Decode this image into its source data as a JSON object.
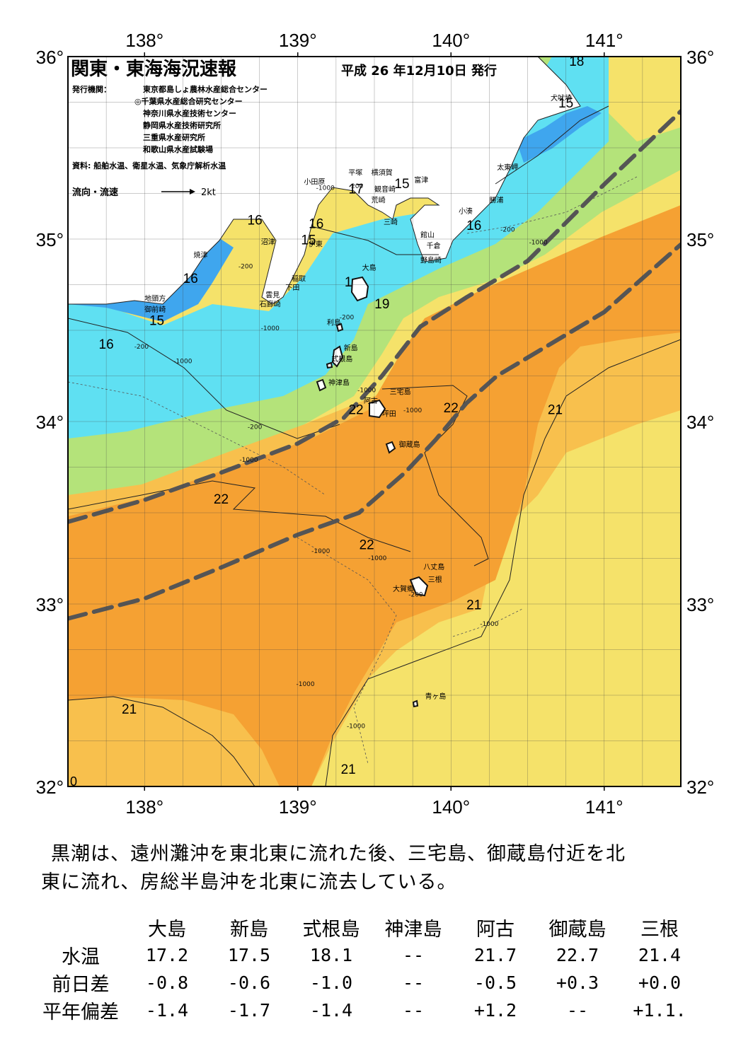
{
  "header": {
    "title": "関東・東海海況速報",
    "issue_date": "平成 26 年12月10日 発行",
    "publisher_label": "発行機関：",
    "publishers": [
      "東京都島しょ農林水産総合センター",
      "◎千葉県水産総合研究センター",
      "神奈川県水産技術センター",
      "静岡県水産技術研究所",
      "三重県水産研究所",
      "和歌山県水産試験場"
    ],
    "source": "資料: 船舶水温、衛星水温、気象庁解析水温",
    "legend_label": "流向・流速",
    "legend_scale": "2kt"
  },
  "map": {
    "lon_ticks": [
      "138°",
      "139°",
      "140°",
      "141°"
    ],
    "lat_ticks": [
      "36°",
      "35°",
      "34°",
      "33°",
      "32°"
    ],
    "corner_zero": "0",
    "colors": {
      "ocean_warm": "#f5a133",
      "ocean_mid": "#f8c04d",
      "ocean_yellow": "#f5e26a",
      "ocean_cold_green": "#b4e37a",
      "ocean_cyan": "#5fe0f2",
      "ocean_blue": "#3fa6ee",
      "land": "#ffffff",
      "kuroshio_axis": "#555555"
    },
    "temp_labels": [
      {
        "text": "18",
        "lon": 140.82,
        "lat": 35.95
      },
      {
        "text": "15",
        "lon": 140.75,
        "lat": 35.72
      },
      {
        "text": "16",
        "lon": 140.15,
        "lat": 35.05
      },
      {
        "text": "17",
        "lon": 139.38,
        "lat": 35.25
      },
      {
        "text": "15",
        "lon": 139.68,
        "lat": 35.28
      },
      {
        "text": "16",
        "lon": 138.72,
        "lat": 35.08
      },
      {
        "text": "16",
        "lon": 139.12,
        "lat": 35.06
      },
      {
        "text": "15",
        "lon": 139.07,
        "lat": 34.97
      },
      {
        "text": "16",
        "lon": 138.3,
        "lat": 34.76
      },
      {
        "text": "15",
        "lon": 138.08,
        "lat": 34.53
      },
      {
        "text": "16",
        "lon": 137.75,
        "lat": 34.4
      },
      {
        "text": "1",
        "lon": 139.33,
        "lat": 34.74
      },
      {
        "text": "19",
        "lon": 139.55,
        "lat": 34.62
      },
      {
        "text": "22",
        "lon": 139.38,
        "lat": 34.04
      },
      {
        "text": "22",
        "lon": 140.0,
        "lat": 34.05
      },
      {
        "text": "21",
        "lon": 140.68,
        "lat": 34.04
      },
      {
        "text": "22",
        "lon": 138.5,
        "lat": 33.55
      },
      {
        "text": "22",
        "lon": 139.45,
        "lat": 33.3
      },
      {
        "text": "21",
        "lon": 140.15,
        "lat": 32.97
      },
      {
        "text": "21",
        "lon": 137.9,
        "lat": 32.4
      },
      {
        "text": "21",
        "lon": 139.33,
        "lat": 32.07
      }
    ],
    "place_names": [
      {
        "text": "犬吠埼",
        "lon": 140.65,
        "lat": 35.76
      },
      {
        "text": "太東岬",
        "lon": 140.3,
        "lat": 35.38
      },
      {
        "text": "勝浦",
        "lon": 140.25,
        "lat": 35.2
      },
      {
        "text": "小湊",
        "lon": 140.05,
        "lat": 35.14
      },
      {
        "text": "富津",
        "lon": 139.76,
        "lat": 35.31
      },
      {
        "text": "横須賀",
        "lon": 139.48,
        "lat": 35.35
      },
      {
        "text": "観音崎",
        "lon": 139.5,
        "lat": 35.26
      },
      {
        "text": "荒崎",
        "lon": 139.48,
        "lat": 35.2
      },
      {
        "text": "三崎",
        "lon": 139.56,
        "lat": 35.08
      },
      {
        "text": "館山",
        "lon": 139.8,
        "lat": 35.01
      },
      {
        "text": "千倉",
        "lon": 139.84,
        "lat": 34.95
      },
      {
        "text": "野島崎",
        "lon": 139.8,
        "lat": 34.87
      },
      {
        "text": "平塚",
        "lon": 139.33,
        "lat": 35.35
      },
      {
        "text": "小田原",
        "lon": 139.04,
        "lat": 35.3
      },
      {
        "text": "沼津",
        "lon": 138.76,
        "lat": 34.97
      },
      {
        "text": "伊東",
        "lon": 139.07,
        "lat": 34.96
      },
      {
        "text": "稲取",
        "lon": 138.96,
        "lat": 34.77
      },
      {
        "text": "下田",
        "lon": 138.92,
        "lat": 34.72
      },
      {
        "text": "雲見",
        "lon": 138.79,
        "lat": 34.68
      },
      {
        "text": "石廊崎",
        "lon": 138.75,
        "lat": 34.63
      },
      {
        "text": "焼津",
        "lon": 138.32,
        "lat": 34.9
      },
      {
        "text": "地頭方",
        "lon": 138.0,
        "lat": 34.66
      },
      {
        "text": "御前崎",
        "lon": 138.0,
        "lat": 34.6
      },
      {
        "text": "大島",
        "lon": 139.42,
        "lat": 34.83
      },
      {
        "text": "利島",
        "lon": 139.19,
        "lat": 34.53
      },
      {
        "text": "新島",
        "lon": 139.3,
        "lat": 34.39
      },
      {
        "text": "式根島",
        "lon": 139.22,
        "lat": 34.33
      },
      {
        "text": "神津島",
        "lon": 139.2,
        "lat": 34.2
      },
      {
        "text": "三宅島",
        "lon": 139.6,
        "lat": 34.15
      },
      {
        "text": "阿古",
        "lon": 139.43,
        "lat": 34.1
      },
      {
        "text": "坪田",
        "lon": 139.55,
        "lat": 34.03
      },
      {
        "text": "御蔵島",
        "lon": 139.66,
        "lat": 33.86
      },
      {
        "text": "八丈島",
        "lon": 139.82,
        "lat": 33.19
      },
      {
        "text": "三根",
        "lon": 139.85,
        "lat": 33.12
      },
      {
        "text": "大賀郷",
        "lon": 139.62,
        "lat": 33.07
      },
      {
        "text": "青ヶ島",
        "lon": 139.83,
        "lat": 32.48
      }
    ],
    "depth_labels": [
      {
        "text": "-1000",
        "lon": 139.18,
        "lat": 35.27
      },
      {
        "text": "-200",
        "lon": 139.38,
        "lat": 35.28
      },
      {
        "text": "-200",
        "lon": 140.37,
        "lat": 35.04
      },
      {
        "text": "-1000",
        "lon": 140.57,
        "lat": 34.97
      },
      {
        "text": "-200",
        "lon": 138.66,
        "lat": 34.84
      },
      {
        "text": "-1000",
        "lon": 138.82,
        "lat": 34.5
      },
      {
        "text": "-200",
        "lon": 139.32,
        "lat": 34.56
      },
      {
        "text": "-200",
        "lon": 137.98,
        "lat": 34.4
      },
      {
        "text": "-1000",
        "lon": 138.25,
        "lat": 34.32
      },
      {
        "text": "-1000",
        "lon": 139.45,
        "lat": 34.16
      },
      {
        "text": "-1000",
        "lon": 139.75,
        "lat": 34.05
      },
      {
        "text": "-200",
        "lon": 138.72,
        "lat": 33.96
      },
      {
        "text": "-1000",
        "lon": 138.68,
        "lat": 33.78
      },
      {
        "text": "-1000",
        "lon": 139.15,
        "lat": 33.28
      },
      {
        "text": "-1000",
        "lon": 139.52,
        "lat": 33.24
      },
      {
        "text": "-200",
        "lon": 139.77,
        "lat": 33.04
      },
      {
        "text": "-1000",
        "lon": 140.25,
        "lat": 32.88
      },
      {
        "text": "-1000",
        "lon": 139.05,
        "lat": 32.55
      },
      {
        "text": "-1000",
        "lon": 139.38,
        "lat": 32.32
      }
    ],
    "kuroshio_axis": [
      [
        [
          137.5,
          33.45
        ],
        [
          138.0,
          33.57
        ],
        [
          138.5,
          33.72
        ],
        [
          139.0,
          33.88
        ],
        [
          139.3,
          34.02
        ],
        [
          139.55,
          34.25
        ],
        [
          139.8,
          34.52
        ],
        [
          140.1,
          34.68
        ],
        [
          140.5,
          34.88
        ],
        [
          141.0,
          35.3
        ],
        [
          141.5,
          35.7
        ]
      ],
      [
        [
          137.5,
          32.92
        ],
        [
          138.0,
          33.03
        ],
        [
          138.5,
          33.2
        ],
        [
          139.0,
          33.38
        ],
        [
          139.4,
          33.5
        ],
        [
          139.7,
          33.72
        ],
        [
          139.9,
          33.9
        ],
        [
          140.1,
          34.1
        ],
        [
          140.3,
          34.25
        ],
        [
          140.6,
          34.4
        ],
        [
          141.0,
          34.6
        ],
        [
          141.5,
          34.97
        ]
      ]
    ]
  },
  "summary": {
    "line1": "黒潮は、遠州灘沖を東北東に流れた後、三宅島、御蔵島付近を北",
    "line2": "東に流れ、房総半島沖を北東に流去している。"
  },
  "table": {
    "columns": [
      "大島",
      "新島",
      "式根島",
      "神津島",
      "阿古",
      "御蔵島",
      "三根"
    ],
    "rows": [
      {
        "label": "水温",
        "values": [
          "17.2",
          "17.5",
          "18.1",
          "--",
          "21.7",
          "22.7",
          "21.4"
        ]
      },
      {
        "label": "前日差",
        "values": [
          "-0.8",
          "-0.6",
          "-1.0",
          "--",
          "-0.5",
          "+0.3",
          "+0.0"
        ]
      },
      {
        "label": "平年偏差",
        "values": [
          "-1.4",
          "-1.7",
          "-1.4",
          "--",
          "+1.2",
          "--",
          "+1.1."
        ]
      }
    ]
  }
}
